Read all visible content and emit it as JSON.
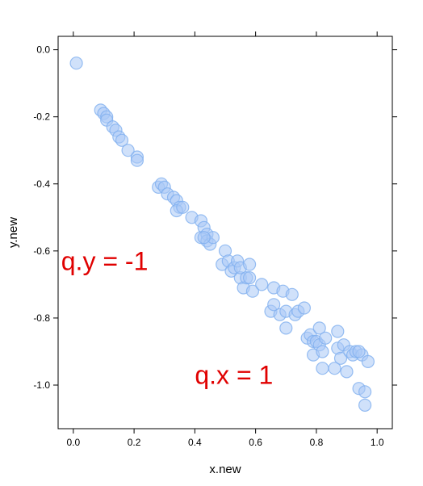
{
  "chart_data": {
    "type": "scatter",
    "title": "",
    "xlabel": "x.new",
    "ylabel": "y.new",
    "xlim": [
      -0.05,
      1.05
    ],
    "ylim": [
      -1.13,
      0.04
    ],
    "xticks": [
      0.0,
      0.2,
      0.4,
      0.6,
      0.8,
      1.0
    ],
    "xtick_labels": [
      "0.0",
      "0.2",
      "0.4",
      "0.6",
      "0.8",
      "1.0"
    ],
    "yticks": [
      0.0,
      -0.2,
      -0.4,
      -0.6,
      -0.8,
      -1.0
    ],
    "ytick_labels": [
      "0.0",
      "-0.2",
      "-0.4",
      "-0.6",
      "-0.8",
      "-1.0"
    ],
    "grid": false,
    "point_fill": "#a9c9f5",
    "point_stroke": "#7fafef",
    "point_opacity": 0.55,
    "annotation_color": "#e00000",
    "annotations": [
      {
        "text": "q.y = -1",
        "x": -0.04,
        "y": -0.63
      },
      {
        "text": "q.x = 1",
        "x": 0.4,
        "y": -0.97
      }
    ],
    "x": [
      0.01,
      0.09,
      0.1,
      0.11,
      0.11,
      0.13,
      0.14,
      0.15,
      0.16,
      0.18,
      0.21,
      0.21,
      0.28,
      0.29,
      0.3,
      0.31,
      0.33,
      0.34,
      0.35,
      0.34,
      0.36,
      0.39,
      0.42,
      0.42,
      0.43,
      0.44,
      0.44,
      0.45,
      0.46,
      0.43,
      0.49,
      0.5,
      0.51,
      0.52,
      0.53,
      0.54,
      0.55,
      0.55,
      0.56,
      0.57,
      0.58,
      0.58,
      0.59,
      0.62,
      0.65,
      0.66,
      0.66,
      0.68,
      0.69,
      0.7,
      0.7,
      0.72,
      0.73,
      0.74,
      0.76,
      0.77,
      0.78,
      0.79,
      0.79,
      0.8,
      0.81,
      0.81,
      0.82,
      0.82,
      0.83,
      0.86,
      0.87,
      0.87,
      0.88,
      0.89,
      0.9,
      0.91,
      0.92,
      0.93,
      0.94,
      0.95,
      0.96,
      0.96,
      0.97,
      0.94
    ],
    "y": [
      -0.04,
      -0.18,
      -0.19,
      -0.2,
      -0.21,
      -0.23,
      -0.24,
      -0.26,
      -0.27,
      -0.3,
      -0.32,
      -0.33,
      -0.41,
      -0.4,
      -0.41,
      -0.43,
      -0.44,
      -0.45,
      -0.47,
      -0.48,
      -0.47,
      -0.5,
      -0.51,
      -0.56,
      -0.53,
      -0.55,
      -0.57,
      -0.58,
      -0.56,
      -0.56,
      -0.64,
      -0.6,
      -0.63,
      -0.66,
      -0.65,
      -0.63,
      -0.68,
      -0.65,
      -0.71,
      -0.68,
      -0.64,
      -0.68,
      -0.72,
      -0.7,
      -0.78,
      -0.71,
      -0.76,
      -0.79,
      -0.72,
      -0.78,
      -0.83,
      -0.73,
      -0.79,
      -0.78,
      -0.77,
      -0.86,
      -0.85,
      -0.87,
      -0.91,
      -0.87,
      -0.83,
      -0.88,
      -0.9,
      -0.95,
      -0.86,
      -0.95,
      -0.89,
      -0.84,
      -0.92,
      -0.88,
      -0.96,
      -0.9,
      -0.91,
      -0.9,
      -1.01,
      -0.91,
      -1.02,
      -1.06,
      -0.93,
      -0.9
    ]
  }
}
